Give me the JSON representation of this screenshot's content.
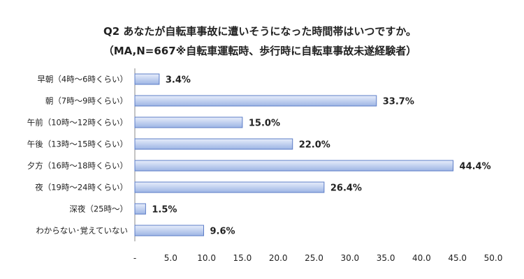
{
  "chart_data": {
    "type": "bar",
    "orientation": "horizontal",
    "title": "Q2 あなたが自転車事故に遭いそうになった時間帯はいつですか。",
    "subtitle": "（MA,N=667※自転車運転時、歩行時に自転車事故未遂経験者）",
    "categories": [
      "早朝（4時～6時くらい）",
      "朝（7時～9時くらい）",
      "午前（10時～12時くらい）",
      "午後（13時～15時くらい）",
      "夕方（16時～18時くらい）",
      "夜（19時～24時くらい）",
      "深夜（25時～）",
      "わからない･覚えていない"
    ],
    "values": [
      3.4,
      33.7,
      15.0,
      22.0,
      44.4,
      26.4,
      1.5,
      9.6
    ],
    "value_labels": [
      "3.4%",
      "33.7%",
      "15.0%",
      "22.0%",
      "44.4%",
      "26.4%",
      "1.5%",
      "9.6%"
    ],
    "x_ticks": [
      "-",
      "5.0",
      "10.0",
      "15.0",
      "20.0",
      "25.0",
      "30.0",
      "35.0",
      "40.0",
      "45.0",
      "50.0"
    ],
    "xlim": [
      0,
      50
    ],
    "xlabel": "",
    "ylabel": "",
    "grid": false,
    "legend": "none",
    "bar_fill_light": "#e8eefb",
    "bar_fill_dark": "#9db4e4",
    "bar_stroke": "#5b7cc7",
    "axis_color": "#8a8a8a"
  }
}
